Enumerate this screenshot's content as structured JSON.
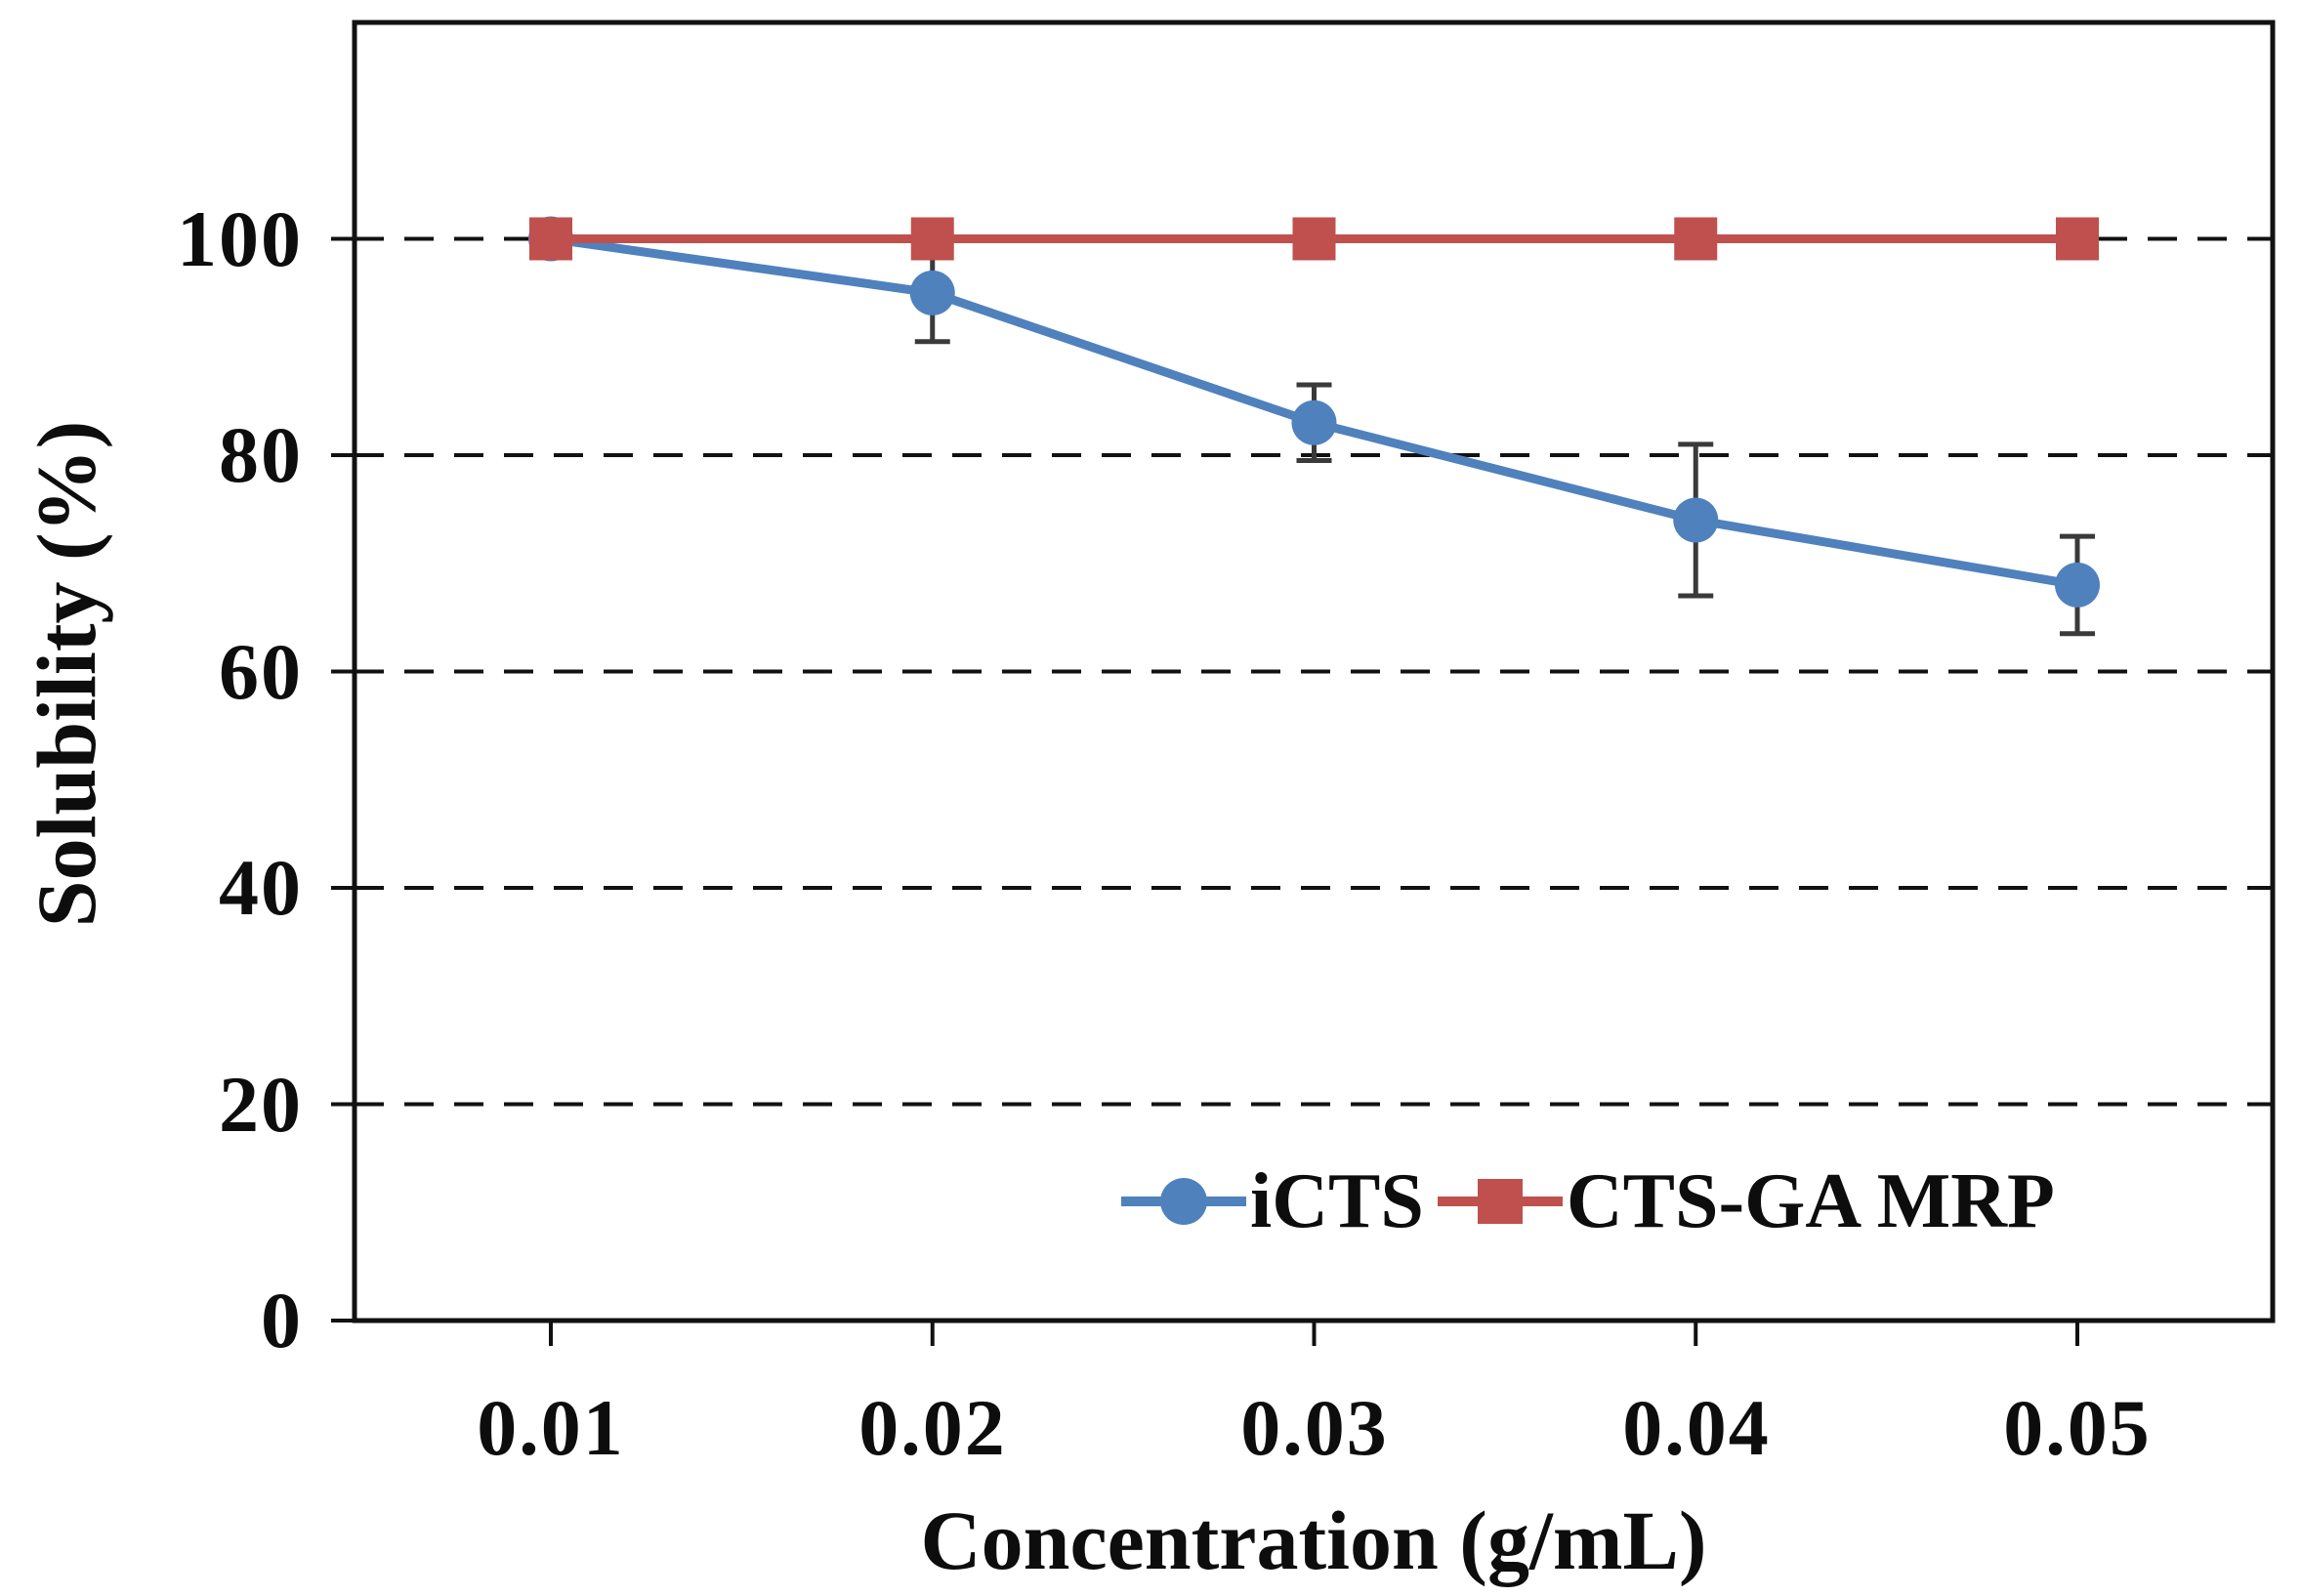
{
  "chart_data": {
    "type": "line",
    "x": [
      0.01,
      0.02,
      0.03,
      0.04,
      0.05
    ],
    "xtick_labels": [
      "0.01",
      "0.02",
      "0.03",
      "0.04",
      "0.05"
    ],
    "ytick_labels": [
      "0",
      "20",
      "40",
      "60",
      "80",
      "100"
    ],
    "yticks": [
      0,
      20,
      40,
      60,
      80,
      100
    ],
    "ylim": [
      0,
      120
    ],
    "xlabel": "Concentration (g/mL)",
    "ylabel": "Solubility (%)",
    "grid": "horizontal dashed lines at 20, 40, 60, 80, 100",
    "legend_position": "inside bottom-right",
    "series": [
      {
        "name": "iCTS",
        "marker": "circle",
        "color": "#4F81BD",
        "values": [
          100,
          95,
          83,
          74,
          68
        ],
        "error": [
          0,
          4.5,
          3.5,
          7,
          4.5
        ]
      },
      {
        "name": "CTS-GA MRP",
        "marker": "square",
        "color": "#C0504D",
        "values": [
          100,
          100,
          100,
          100,
          100
        ],
        "error": [
          0,
          0,
          0,
          0,
          0
        ]
      }
    ],
    "error_bar_color": "#3a3a3a",
    "axis_color": "#111111"
  }
}
